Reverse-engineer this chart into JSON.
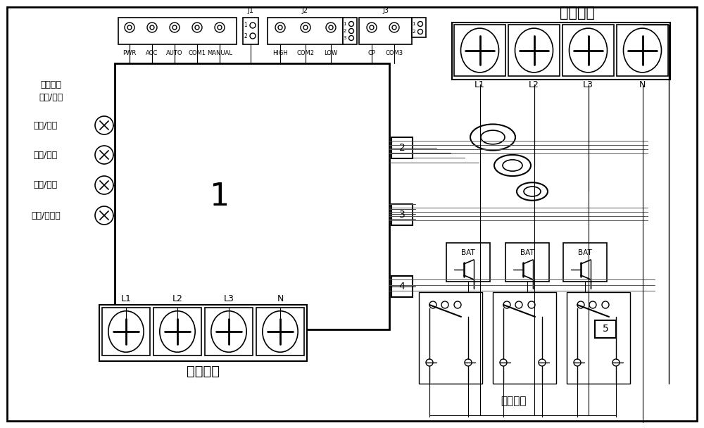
{
  "bg_color": "#ffffff",
  "line_color": "#000000",
  "connector_labels_top": [
    "PWR",
    "ACC",
    "AUTO",
    "COM1",
    "MANUAL"
  ],
  "j1_label": "J1",
  "j2_labels": [
    "HIGH",
    "COM2",
    "LOW"
  ],
  "j2_label": "J2",
  "j3_labels": [
    "CP",
    "COM3"
  ],
  "j3_label": "J3",
  "power_input_label": "电源输入",
  "power_output_label": "电源输出",
  "output_ctrl_label": "输出控制",
  "input_terminals": [
    "L1",
    "L2",
    "L3",
    "N"
  ],
  "output_terminals": [
    "L1",
    "L2",
    "L3",
    "N"
  ],
  "status_lines": [
    "状态指示",
    "常亮/闪烁"
  ],
  "led_labels": [
    "过压/欠压",
    "过载/空载",
    "短路/漏电",
    "缺相/不平衡"
  ],
  "bat_label": "BAT",
  "num1": "1",
  "num2": "2",
  "num3": "3",
  "num4": "4",
  "num5": "5"
}
